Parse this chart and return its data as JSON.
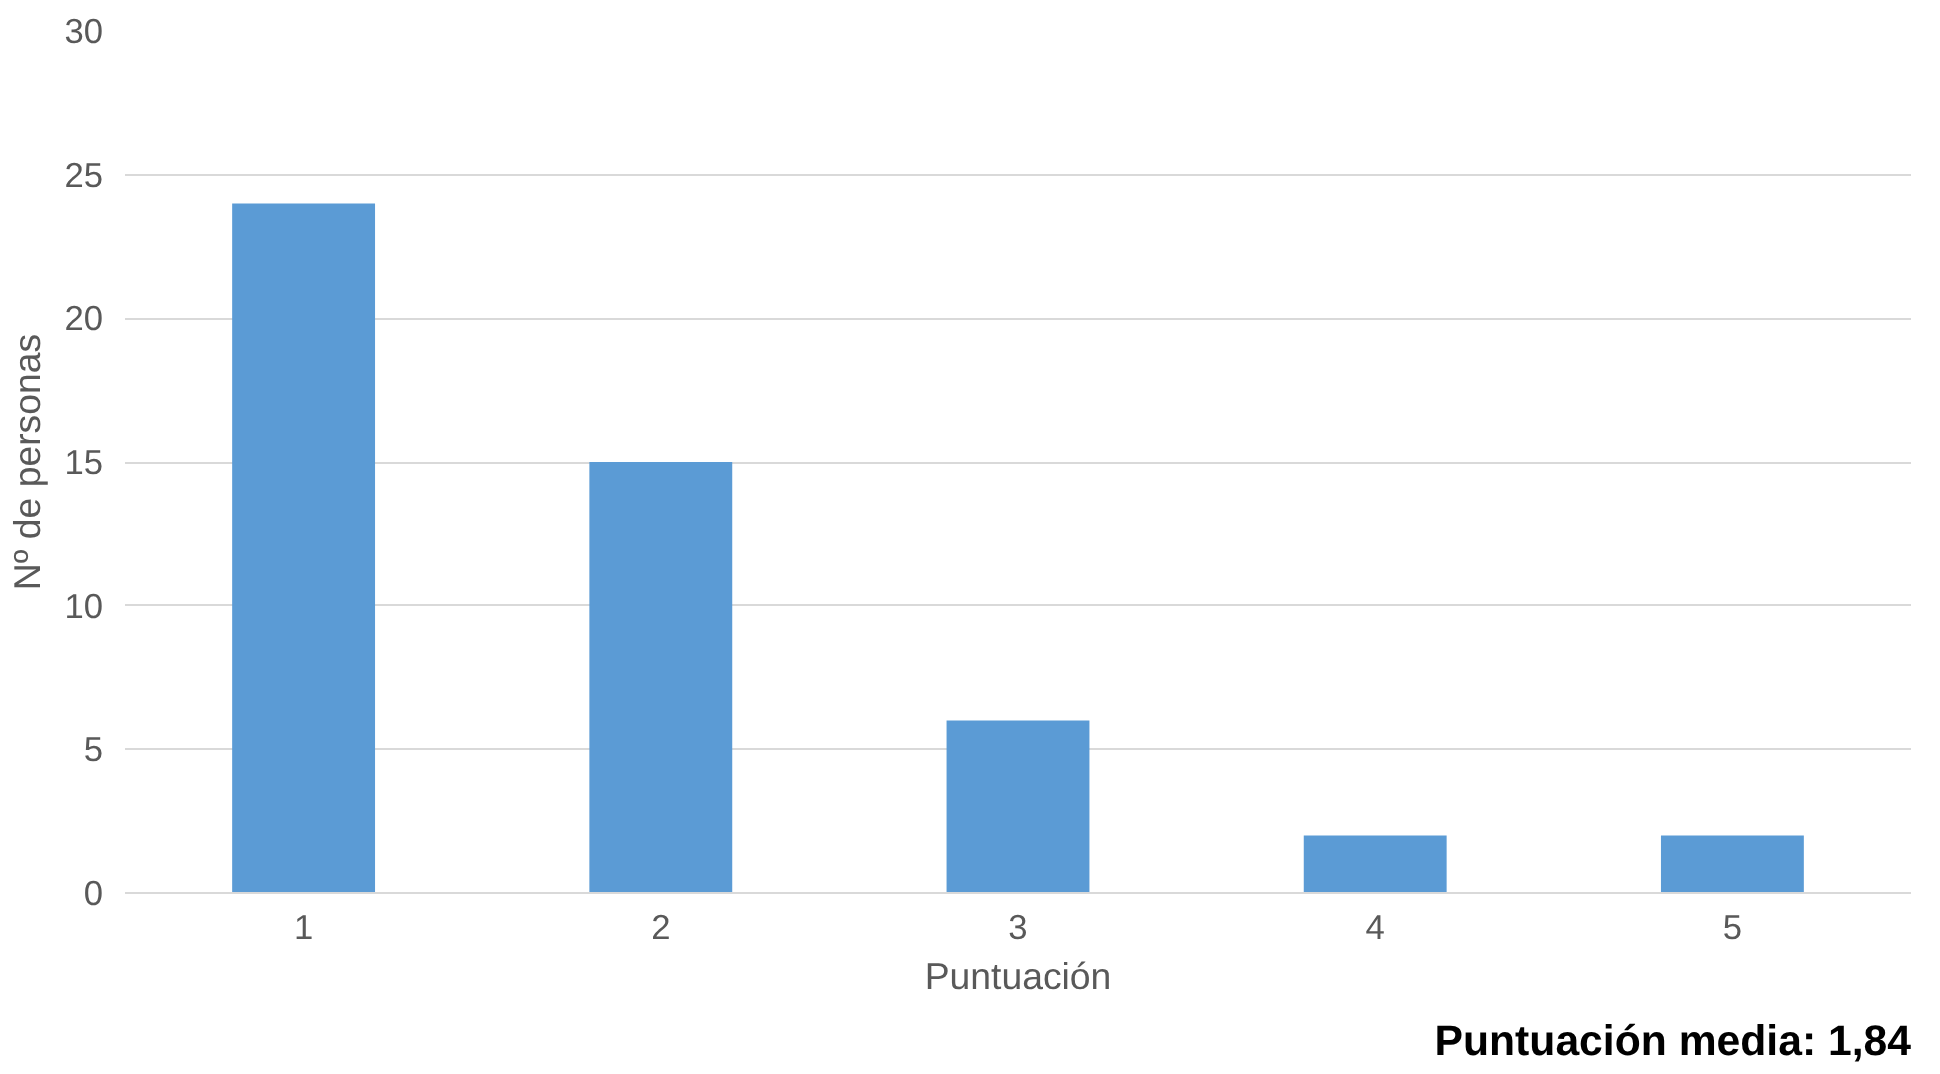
{
  "chart_data": {
    "type": "bar",
    "xlabel": "Puntuación",
    "ylabel": "Nº de personas",
    "categories": [
      "1",
      "2",
      "3",
      "4",
      "5"
    ],
    "values": [
      24,
      15,
      6,
      2,
      2
    ],
    "color": "#5b9bd5",
    "ylim": [
      0,
      30
    ],
    "yticks": [
      0,
      5,
      10,
      15,
      20,
      25,
      30
    ],
    "grid": "y",
    "annotations": [
      "Puntuación media: 1,84"
    ]
  }
}
